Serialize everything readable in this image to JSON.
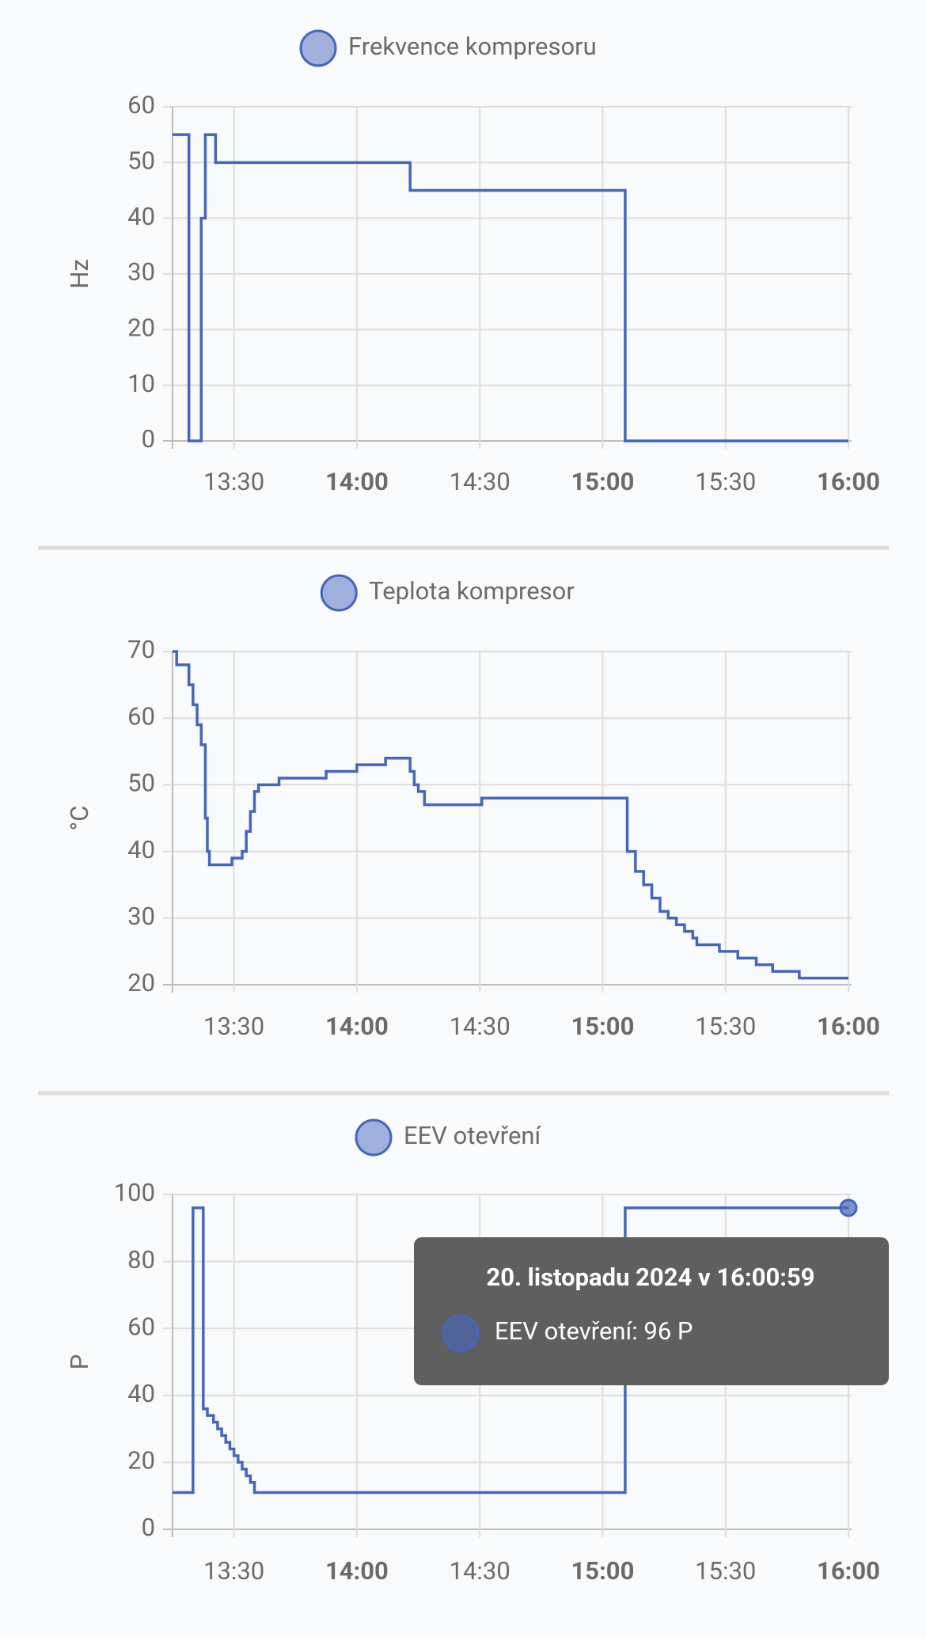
{
  "chart_data": [
    {
      "type": "line",
      "step": "post",
      "y_label": "Hz",
      "x": [
        795,
        799,
        802,
        803,
        805.5,
        853,
        905.5,
        960
      ],
      "series": [
        {
          "name": "Frekvence kompresoru",
          "color": "#4466bb",
          "values": [
            55,
            0,
            40,
            55,
            50,
            45,
            0,
            0
          ]
        }
      ],
      "xlim": [
        795,
        960
      ],
      "xticks": [
        {
          "value": 810,
          "label": "13:30"
        },
        {
          "value": 840,
          "label": "14:00"
        },
        {
          "value": 870,
          "label": "14:30"
        },
        {
          "value": 900,
          "label": "15:00"
        },
        {
          "value": 930,
          "label": "15:30"
        },
        {
          "value": 960,
          "label": "16:00"
        }
      ],
      "ylim": [
        0,
        60
      ],
      "yticks": [
        0,
        10,
        20,
        30,
        40,
        50,
        60
      ],
      "grid": true
    },
    {
      "type": "line",
      "step": "post",
      "y_label": "°C",
      "x": [
        795,
        796,
        799,
        800,
        801,
        802,
        803,
        803.5,
        804,
        809.5,
        812,
        813,
        814,
        815,
        816,
        821,
        832.5,
        840,
        847,
        853,
        854,
        855,
        856.5,
        870.5,
        905.5,
        906,
        908,
        910,
        912,
        914,
        916,
        918,
        920,
        922,
        923,
        928.5,
        933,
        937.5,
        941.5,
        948,
        960
      ],
      "series": [
        {
          "name": "Teplota kompresor",
          "color": "#4466bb",
          "values": [
            70,
            68,
            65,
            62,
            59,
            56,
            45,
            40,
            38,
            39,
            40,
            43,
            46,
            49,
            50,
            51,
            52,
            53,
            54,
            52,
            50,
            49,
            47,
            48,
            48,
            40,
            37,
            35,
            33,
            31,
            30,
            29,
            28,
            27,
            26,
            25,
            24,
            23,
            22,
            21,
            21
          ]
        }
      ],
      "xlim": [
        795,
        960
      ],
      "xticks": [
        {
          "value": 810,
          "label": "13:30"
        },
        {
          "value": 840,
          "label": "14:00"
        },
        {
          "value": 870,
          "label": "14:30"
        },
        {
          "value": 900,
          "label": "15:00"
        },
        {
          "value": 930,
          "label": "15:30"
        },
        {
          "value": 960,
          "label": "16:00"
        }
      ],
      "ylim": [
        20,
        70
      ],
      "yticks": [
        20,
        30,
        40,
        50,
        60,
        70
      ],
      "grid": true
    },
    {
      "type": "line",
      "step": "post",
      "y_label": "P",
      "x": [
        795,
        800,
        802.5,
        803.5,
        805,
        806,
        807,
        808,
        809,
        810,
        811,
        812,
        813,
        814,
        815,
        905.5,
        960
      ],
      "series": [
        {
          "name": "EEV otevření",
          "color": "#4466bb",
          "values": [
            11,
            96,
            36,
            34,
            32,
            30,
            28,
            26,
            24,
            22,
            20,
            18,
            16,
            14,
            11,
            96,
            96
          ]
        }
      ],
      "xlim": [
        795,
        960
      ],
      "xticks": [
        {
          "value": 810,
          "label": "13:30"
        },
        {
          "value": 840,
          "label": "14:00"
        },
        {
          "value": 870,
          "label": "14:30"
        },
        {
          "value": 900,
          "label": "15:00"
        },
        {
          "value": 930,
          "label": "15:30"
        },
        {
          "value": 960,
          "label": "16:00"
        }
      ],
      "ylim": [
        0,
        100
      ],
      "yticks": [
        0,
        20,
        40,
        60,
        80,
        100
      ],
      "grid": true,
      "tooltip": {
        "title": "20. listopadu 2024 v 16:00:59",
        "text": "EEV otevření: 96 P"
      }
    }
  ]
}
